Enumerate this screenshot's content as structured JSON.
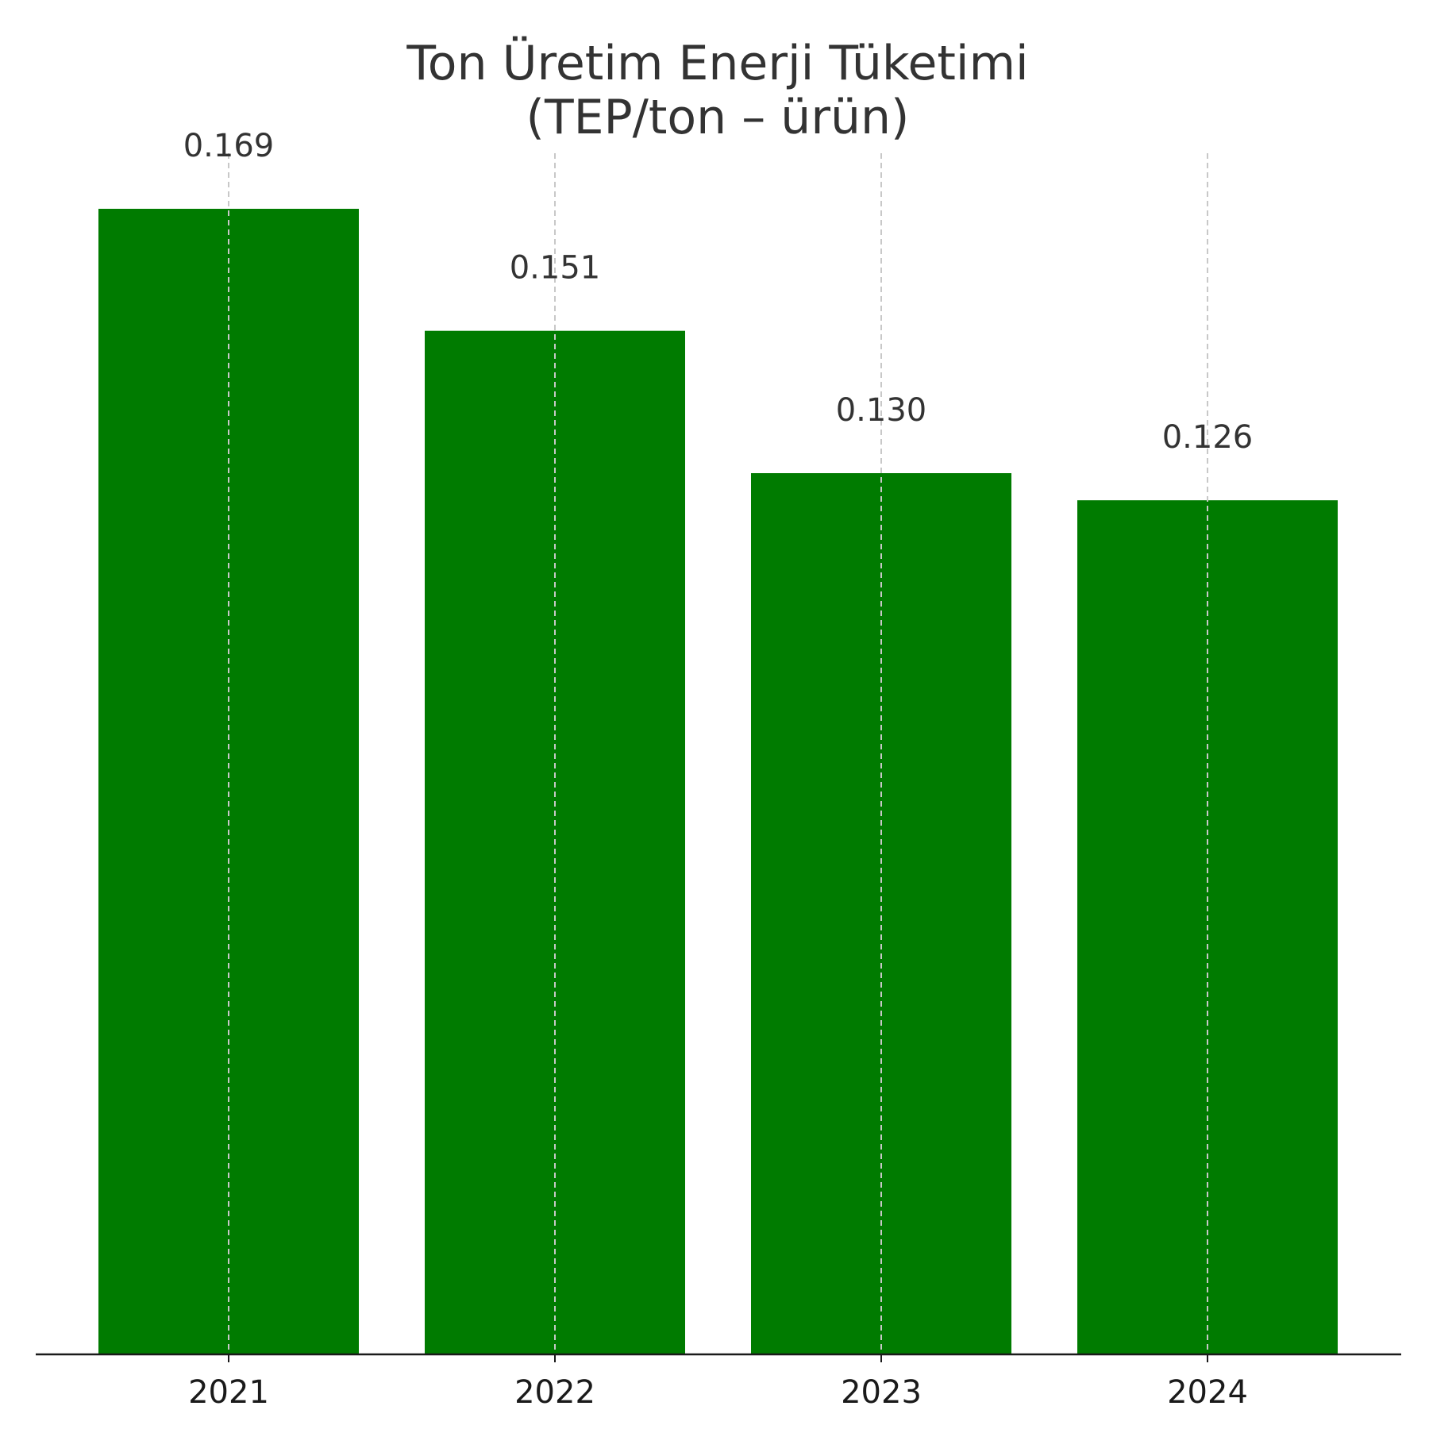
{
  "chart_data": {
    "type": "bar",
    "title_lines": [
      "Ton Üretim Enerji Tüketimi",
      "(TEP/ton – ürün)"
    ],
    "categories": [
      "2021",
      "2022",
      "2023",
      "2024"
    ],
    "values": [
      0.169,
      0.151,
      0.13,
      0.126
    ],
    "value_labels": [
      "0.169",
      "0.151",
      "0.130",
      "0.126"
    ],
    "xlabel": "",
    "ylabel": "",
    "ylim": [
      0,
      0.1775
    ],
    "grid": "vertical dashed at categories",
    "legend": "none",
    "colors": {
      "bar": "#007b00",
      "grid": "#c8c8c8",
      "axis": "#1a1a1a",
      "text": "#333333"
    }
  }
}
